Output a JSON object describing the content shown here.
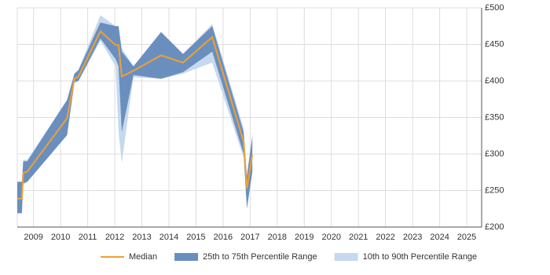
{
  "chart_data": {
    "type": "line",
    "x": [
      2008.4,
      2008.57,
      2008.62,
      2008.77,
      2010.24,
      2010.51,
      2010.66,
      2011.47,
      2012.03,
      2012.14,
      2012.26,
      2012.69,
      2013.71,
      2014.52,
      2015.6,
      2016.76,
      2016.88,
      2017.08
    ],
    "series": [
      {
        "name": "10th to 90th Percentile Range",
        "color": "#c6d9ee",
        "lower": [
          219,
          219,
          258,
          262,
          326,
          398,
          400,
          455,
          420,
          330,
          288,
          405,
          403,
          410,
          425,
          295,
          230,
          275
        ],
        "upper": [
          262,
          262,
          292,
          292,
          374,
          410,
          415,
          490,
          475,
          475,
          445,
          420,
          467,
          437,
          478,
          335,
          268,
          320
        ]
      },
      {
        "name": "25th to 75th Percentile Range",
        "color": "#6a8fbf",
        "lower": [
          219,
          219,
          260,
          262,
          326,
          398,
          400,
          458,
          430,
          420,
          330,
          408,
          403,
          412,
          440,
          300,
          225,
          275
        ],
        "upper": [
          262,
          262,
          290,
          290,
          374,
          410,
          415,
          480,
          475,
          475,
          440,
          420,
          467,
          437,
          475,
          330,
          270,
          325
        ]
      },
      {
        "name": "Median",
        "color": "#f0a030",
        "values": [
          239,
          239,
          274,
          276,
          349,
          403,
          406,
          468,
          449,
          449,
          406,
          414,
          435,
          425,
          460,
          317,
          253,
          299
        ]
      }
    ],
    "xlim": [
      2008.4,
      2025.55
    ],
    "xticks": [
      2009,
      2010,
      2011,
      2012,
      2013,
      2014,
      2015,
      2016,
      2017,
      2018,
      2019,
      2020,
      2021,
      2022,
      2023,
      2024,
      2025
    ],
    "ylim": [
      200,
      500
    ],
    "yticks": [
      {
        "value": 200,
        "label": "£200"
      },
      {
        "value": 250,
        "label": "£250"
      },
      {
        "value": 300,
        "label": "£300"
      },
      {
        "value": 350,
        "label": "£350"
      },
      {
        "value": 400,
        "label": "£400"
      },
      {
        "value": 450,
        "label": "£450"
      },
      {
        "value": 500,
        "label": "£500"
      }
    ],
    "grid": true
  }
}
